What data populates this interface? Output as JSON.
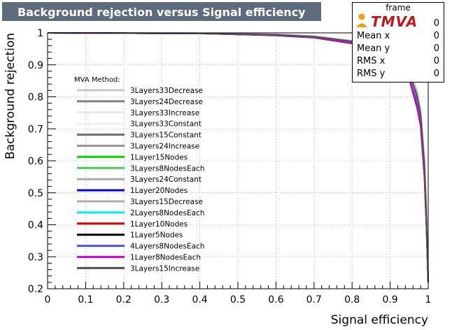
{
  "title": "Background rejection versus Signal efficiency",
  "statbox": {
    "header": "frame",
    "rows": [
      {
        "label": "",
        "value": "0"
      },
      {
        "label": "Mean x",
        "value": "0"
      },
      {
        "label": "Mean y",
        "value": "0"
      },
      {
        "label": "RMS x",
        "value": "0"
      },
      {
        "label": "RMS y",
        "value": "0"
      }
    ]
  },
  "logo_text": "TMVA",
  "colors": {
    "title_bg": "#5d6b7d",
    "logo_red": "#c1161a",
    "logo_orange": "#f39c12"
  },
  "chart_data": {
    "type": "line",
    "title": "Background rejection versus Signal efficiency",
    "xlabel": "Signal efficiency",
    "ylabel": "Background rejection",
    "xlim": [
      0,
      1
    ],
    "ylim": [
      0.2,
      1
    ],
    "xticks": [
      "0",
      "0.1",
      "0.2",
      "0.3",
      "0.4",
      "0.5",
      "0.6",
      "0.7",
      "0.8",
      "0.9",
      "1"
    ],
    "yticks": [
      "0.2",
      "0.3",
      "0.4",
      "0.5",
      "0.6",
      "0.7",
      "0.8",
      "0.9",
      "1"
    ],
    "grid": true,
    "legend_title": "MVA Method:",
    "legend_placement": "left",
    "series": [
      {
        "name": "3Layers33Decrease",
        "color": "#c8c8c8",
        "x": [
          0,
          0.4,
          0.6,
          0.7,
          0.8,
          0.85,
          0.9,
          0.93,
          0.95,
          0.97,
          0.98,
          0.99,
          0.995,
          1
        ],
        "y": [
          1,
          0.999,
          0.995,
          0.99,
          0.975,
          0.96,
          0.935,
          0.91,
          0.88,
          0.82,
          0.76,
          0.6,
          0.45,
          0.22
        ]
      },
      {
        "name": "3Layers24Decrease",
        "color": "#808080",
        "x": [
          0,
          0.4,
          0.6,
          0.7,
          0.8,
          0.85,
          0.9,
          0.93,
          0.95,
          0.97,
          0.98,
          0.99,
          0.995,
          1
        ],
        "y": [
          1,
          0.999,
          0.994,
          0.989,
          0.974,
          0.958,
          0.933,
          0.905,
          0.875,
          0.81,
          0.75,
          0.59,
          0.44,
          0.22
        ]
      },
      {
        "name": "3Layers33Increase",
        "color": "#e6e6e6",
        "x": [
          0,
          0.4,
          0.6,
          0.7,
          0.8,
          0.85,
          0.9,
          0.93,
          0.95,
          0.97,
          0.98,
          0.99,
          0.995,
          1
        ],
        "y": [
          1,
          0.999,
          0.996,
          0.99,
          0.976,
          0.961,
          0.937,
          0.912,
          0.884,
          0.83,
          0.77,
          0.62,
          0.47,
          0.22
        ]
      },
      {
        "name": "3Layers33Constant",
        "color": "#f0f0f0",
        "x": [
          0,
          0.4,
          0.6,
          0.7,
          0.8,
          0.85,
          0.9,
          0.93,
          0.95,
          0.97,
          0.98,
          0.99,
          0.995,
          1
        ],
        "y": [
          1,
          0.999,
          0.995,
          0.99,
          0.976,
          0.96,
          0.936,
          0.91,
          0.882,
          0.825,
          0.765,
          0.61,
          0.46,
          0.22
        ]
      },
      {
        "name": "3Layers15Constant",
        "color": "#6e6e6e",
        "x": [
          0,
          0.4,
          0.6,
          0.7,
          0.8,
          0.85,
          0.9,
          0.93,
          0.95,
          0.97,
          0.98,
          0.99,
          0.995,
          1
        ],
        "y": [
          1,
          0.998,
          0.994,
          0.988,
          0.972,
          0.956,
          0.93,
          0.9,
          0.87,
          0.8,
          0.74,
          0.58,
          0.43,
          0.22
        ]
      },
      {
        "name": "3Layers24Increase",
        "color": "#969696",
        "x": [
          0,
          0.4,
          0.6,
          0.7,
          0.8,
          0.85,
          0.9,
          0.93,
          0.95,
          0.97,
          0.98,
          0.99,
          0.995,
          1
        ],
        "y": [
          1,
          0.999,
          0.995,
          0.99,
          0.975,
          0.959,
          0.934,
          0.907,
          0.878,
          0.815,
          0.755,
          0.6,
          0.45,
          0.22
        ]
      },
      {
        "name": "1Layer15Nodes",
        "color": "#00dc00",
        "x": [
          0,
          0.4,
          0.6,
          0.7,
          0.8,
          0.85,
          0.9,
          0.93,
          0.95,
          0.97,
          0.98,
          0.99,
          0.995,
          1
        ],
        "y": [
          1,
          0.998,
          0.993,
          0.987,
          0.97,
          0.953,
          0.926,
          0.896,
          0.865,
          0.79,
          0.73,
          0.57,
          0.42,
          0.22
        ]
      },
      {
        "name": "3Layers8NodesEach",
        "color": "#50c850",
        "x": [
          0,
          0.4,
          0.6,
          0.7,
          0.8,
          0.85,
          0.9,
          0.93,
          0.95,
          0.97,
          0.98,
          0.99,
          0.995,
          1
        ],
        "y": [
          1,
          0.998,
          0.993,
          0.986,
          0.969,
          0.952,
          0.925,
          0.894,
          0.862,
          0.785,
          0.725,
          0.565,
          0.415,
          0.22
        ]
      },
      {
        "name": "3Layers24Constant",
        "color": "#aaaaaa",
        "x": [
          0,
          0.4,
          0.6,
          0.7,
          0.8,
          0.85,
          0.9,
          0.93,
          0.95,
          0.97,
          0.98,
          0.99,
          0.995,
          1
        ],
        "y": [
          1,
          0.999,
          0.995,
          0.99,
          0.975,
          0.959,
          0.935,
          0.908,
          0.879,
          0.818,
          0.758,
          0.6,
          0.45,
          0.22
        ]
      },
      {
        "name": "1Layer20Nodes",
        "color": "#0000dc",
        "x": [
          0,
          0.4,
          0.6,
          0.7,
          0.8,
          0.85,
          0.9,
          0.93,
          0.95,
          0.97,
          0.98,
          0.99,
          0.995,
          1
        ],
        "y": [
          1,
          0.998,
          0.993,
          0.987,
          0.97,
          0.954,
          0.928,
          0.898,
          0.867,
          0.795,
          0.735,
          0.575,
          0.425,
          0.22
        ]
      },
      {
        "name": "3Layers15Decrease",
        "color": "#b4aaa0",
        "x": [
          0,
          0.4,
          0.6,
          0.7,
          0.8,
          0.85,
          0.9,
          0.93,
          0.95,
          0.97,
          0.98,
          0.99,
          0.995,
          1
        ],
        "y": [
          1,
          0.998,
          0.994,
          0.988,
          0.972,
          0.955,
          0.93,
          0.9,
          0.87,
          0.8,
          0.74,
          0.58,
          0.43,
          0.22
        ]
      },
      {
        "name": "2Layers8NodesEach",
        "color": "#00f0f0",
        "x": [
          0,
          0.4,
          0.6,
          0.7,
          0.8,
          0.85,
          0.9,
          0.93,
          0.95,
          0.97,
          0.98,
          0.99,
          0.995,
          1
        ],
        "y": [
          1,
          0.998,
          0.993,
          0.986,
          0.969,
          0.951,
          0.924,
          0.893,
          0.86,
          0.78,
          0.72,
          0.56,
          0.41,
          0.22
        ]
      },
      {
        "name": "1Layer10Nodes",
        "color": "#dc0000",
        "x": [
          0,
          0.4,
          0.6,
          0.7,
          0.8,
          0.85,
          0.9,
          0.93,
          0.95,
          0.97,
          0.98,
          0.99,
          0.995,
          1
        ],
        "y": [
          1,
          0.998,
          0.993,
          0.986,
          0.968,
          0.95,
          0.922,
          0.89,
          0.857,
          0.775,
          0.715,
          0.555,
          0.405,
          0.22
        ]
      },
      {
        "name": "1Layer5Nodes",
        "color": "#000000",
        "x": [
          0,
          0.4,
          0.6,
          0.7,
          0.8,
          0.85,
          0.9,
          0.93,
          0.95,
          0.97,
          0.98,
          0.99,
          0.995,
          1
        ],
        "y": [
          1,
          0.998,
          0.992,
          0.985,
          0.967,
          0.949,
          0.92,
          0.888,
          0.855,
          0.77,
          0.71,
          0.55,
          0.4,
          0.22
        ]
      },
      {
        "name": "4Layers8NodesEach",
        "color": "#5050dc",
        "x": [
          0,
          0.4,
          0.6,
          0.7,
          0.8,
          0.85,
          0.9,
          0.93,
          0.95,
          0.97,
          0.98,
          0.99,
          0.995,
          1
        ],
        "y": [
          1,
          0.998,
          0.993,
          0.986,
          0.969,
          0.951,
          0.924,
          0.892,
          0.859,
          0.78,
          0.72,
          0.56,
          0.41,
          0.22
        ]
      },
      {
        "name": "1Layer8NodesEach",
        "color": "#dc00dc",
        "x": [
          0,
          0.4,
          0.6,
          0.7,
          0.8,
          0.85,
          0.9,
          0.93,
          0.95,
          0.97,
          0.98,
          0.99,
          0.995,
          1
        ],
        "y": [
          1,
          0.998,
          0.993,
          0.986,
          0.968,
          0.95,
          0.922,
          0.89,
          0.857,
          0.775,
          0.715,
          0.555,
          0.405,
          0.22
        ]
      },
      {
        "name": "3Layers15Increase",
        "color": "#505050",
        "x": [
          0,
          0.4,
          0.6,
          0.7,
          0.8,
          0.85,
          0.9,
          0.93,
          0.95,
          0.97,
          0.98,
          0.99,
          0.995,
          1
        ],
        "y": [
          1,
          0.998,
          0.994,
          0.988,
          0.973,
          0.957,
          0.932,
          0.903,
          0.873,
          0.805,
          0.745,
          0.585,
          0.435,
          0.22
        ]
      }
    ]
  }
}
